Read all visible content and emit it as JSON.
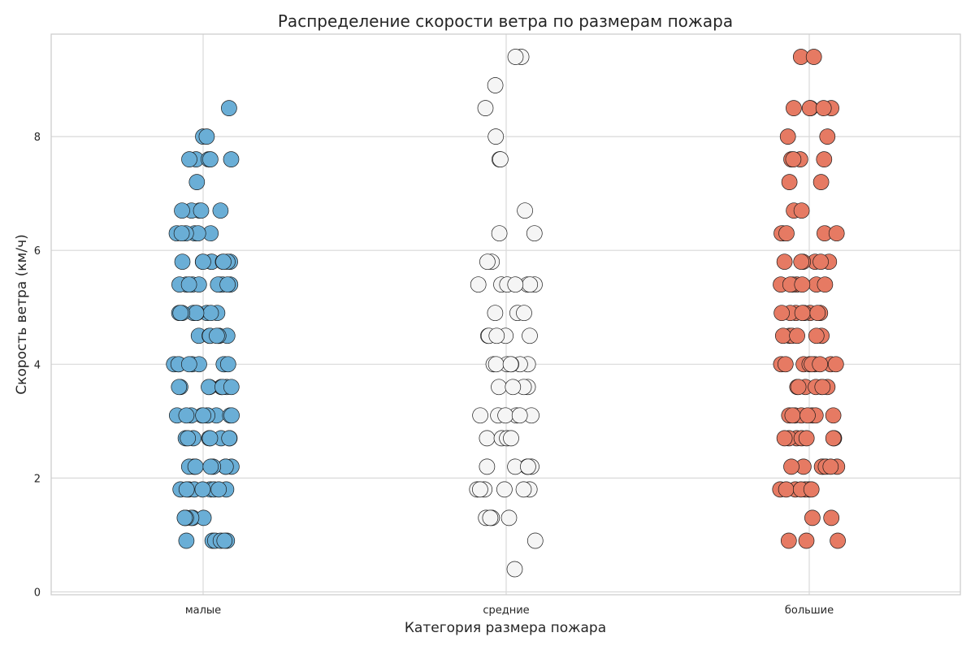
{
  "chart_data": {
    "type": "scatter",
    "subtype": "strip",
    "title": "Распределение скорости ветра по размерам пожара",
    "xlabel": "Категория размера пожара",
    "ylabel": "Скорость ветра (км/ч)",
    "categories": [
      "малые",
      "средние",
      "большие"
    ],
    "ylim": [
      -0.05,
      9.8
    ],
    "yticks": [
      "0",
      "2",
      "4",
      "6",
      "8"
    ],
    "grid": true,
    "legend": "none",
    "colors": {
      "малые": "#6aaed6",
      "средние": "#f5f5f5",
      "большие": "#e67a63"
    },
    "series": [
      {
        "category": "малые",
        "y": [
          8.5,
          8.0,
          8.0,
          7.6,
          7.6,
          7.6,
          7.6,
          7.6,
          7.2,
          6.7,
          6.7,
          6.7,
          6.7,
          6.7,
          6.3,
          6.3,
          6.3,
          6.3,
          6.3,
          6.3,
          5.8,
          5.8,
          5.8,
          5.8,
          5.8,
          5.8,
          5.8,
          5.8,
          5.8,
          5.4,
          5.4,
          5.4,
          5.4,
          5.4,
          5.4,
          5.4,
          5.4,
          5.4,
          5.4,
          4.9,
          4.9,
          4.9,
          4.9,
          4.9,
          4.9,
          4.9,
          4.9,
          4.9,
          4.9,
          4.5,
          4.5,
          4.5,
          4.5,
          4.5,
          4.5,
          4.5,
          4.0,
          4.0,
          4.0,
          4.0,
          4.0,
          4.0,
          4.0,
          4.0,
          4.0,
          3.6,
          3.6,
          3.6,
          3.6,
          3.6,
          3.6,
          3.6,
          3.6,
          3.6,
          3.1,
          3.1,
          3.1,
          3.1,
          3.1,
          3.1,
          3.1,
          3.1,
          3.1,
          3.1,
          2.7,
          2.7,
          2.7,
          2.7,
          2.7,
          2.7,
          2.7,
          2.7,
          2.2,
          2.2,
          2.2,
          2.2,
          2.2,
          2.2,
          2.2,
          2.2,
          2.2,
          1.8,
          1.8,
          1.8,
          1.8,
          1.8,
          1.8,
          1.8,
          1.8,
          1.8,
          1.3,
          1.3,
          1.3,
          1.3,
          1.3,
          1.3,
          0.9,
          0.9,
          0.9,
          0.9,
          0.9,
          0.9
        ]
      },
      {
        "category": "средние",
        "y": [
          9.4,
          9.4,
          8.9,
          8.5,
          8.0,
          7.6,
          7.6,
          6.7,
          6.3,
          6.3,
          5.8,
          5.8,
          5.4,
          5.4,
          5.4,
          5.4,
          5.4,
          5.4,
          5.4,
          4.9,
          4.9,
          4.9,
          4.5,
          4.5,
          4.5,
          4.5,
          4.5,
          4.0,
          4.0,
          4.0,
          4.0,
          4.0,
          4.0,
          4.0,
          3.6,
          3.6,
          3.6,
          3.6,
          3.1,
          3.1,
          3.1,
          3.1,
          3.1,
          3.1,
          2.7,
          2.7,
          2.7,
          2.7,
          2.2,
          2.2,
          2.2,
          2.2,
          2.2,
          2.2,
          1.8,
          1.8,
          1.8,
          1.8,
          1.8,
          1.8,
          1.3,
          1.3,
          1.3,
          1.3,
          0.9,
          0.4
        ]
      },
      {
        "category": "большие",
        "y": [
          9.4,
          9.4,
          8.5,
          8.5,
          8.5,
          8.5,
          8.5,
          8.0,
          8.0,
          7.6,
          7.6,
          7.6,
          7.6,
          7.2,
          7.2,
          6.7,
          6.7,
          6.3,
          6.3,
          6.3,
          6.3,
          6.3,
          5.8,
          5.8,
          5.8,
          5.8,
          5.8,
          5.8,
          5.4,
          5.4,
          5.4,
          5.4,
          5.4,
          5.4,
          5.4,
          4.9,
          4.9,
          4.9,
          4.9,
          4.9,
          4.9,
          4.9,
          4.9,
          4.9,
          4.5,
          4.5,
          4.5,
          4.5,
          4.5,
          4.5,
          4.0,
          4.0,
          4.0,
          4.0,
          4.0,
          4.0,
          4.0,
          4.0,
          4.0,
          3.6,
          3.6,
          3.6,
          3.6,
          3.6,
          3.6,
          3.6,
          3.1,
          3.1,
          3.1,
          3.1,
          3.1,
          3.1,
          3.1,
          3.1,
          2.7,
          2.7,
          2.7,
          2.7,
          2.7,
          2.7,
          2.7,
          2.2,
          2.2,
          2.2,
          2.2,
          2.2,
          2.2,
          2.2,
          1.8,
          1.8,
          1.8,
          1.8,
          1.8,
          1.8,
          1.8,
          1.3,
          1.3,
          0.9,
          0.9,
          0.9
        ]
      }
    ]
  }
}
